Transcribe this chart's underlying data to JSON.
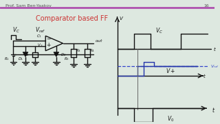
{
  "bg_color": "#dde8e0",
  "header_line_color": "#aa44aa",
  "header_text": "Prof. Sam Ben-Yaakov",
  "header_num": "16",
  "title": "Comparator based FF",
  "title_color": "#cc3333",
  "title_fontsize": 7.0,
  "lw": 1.0
}
